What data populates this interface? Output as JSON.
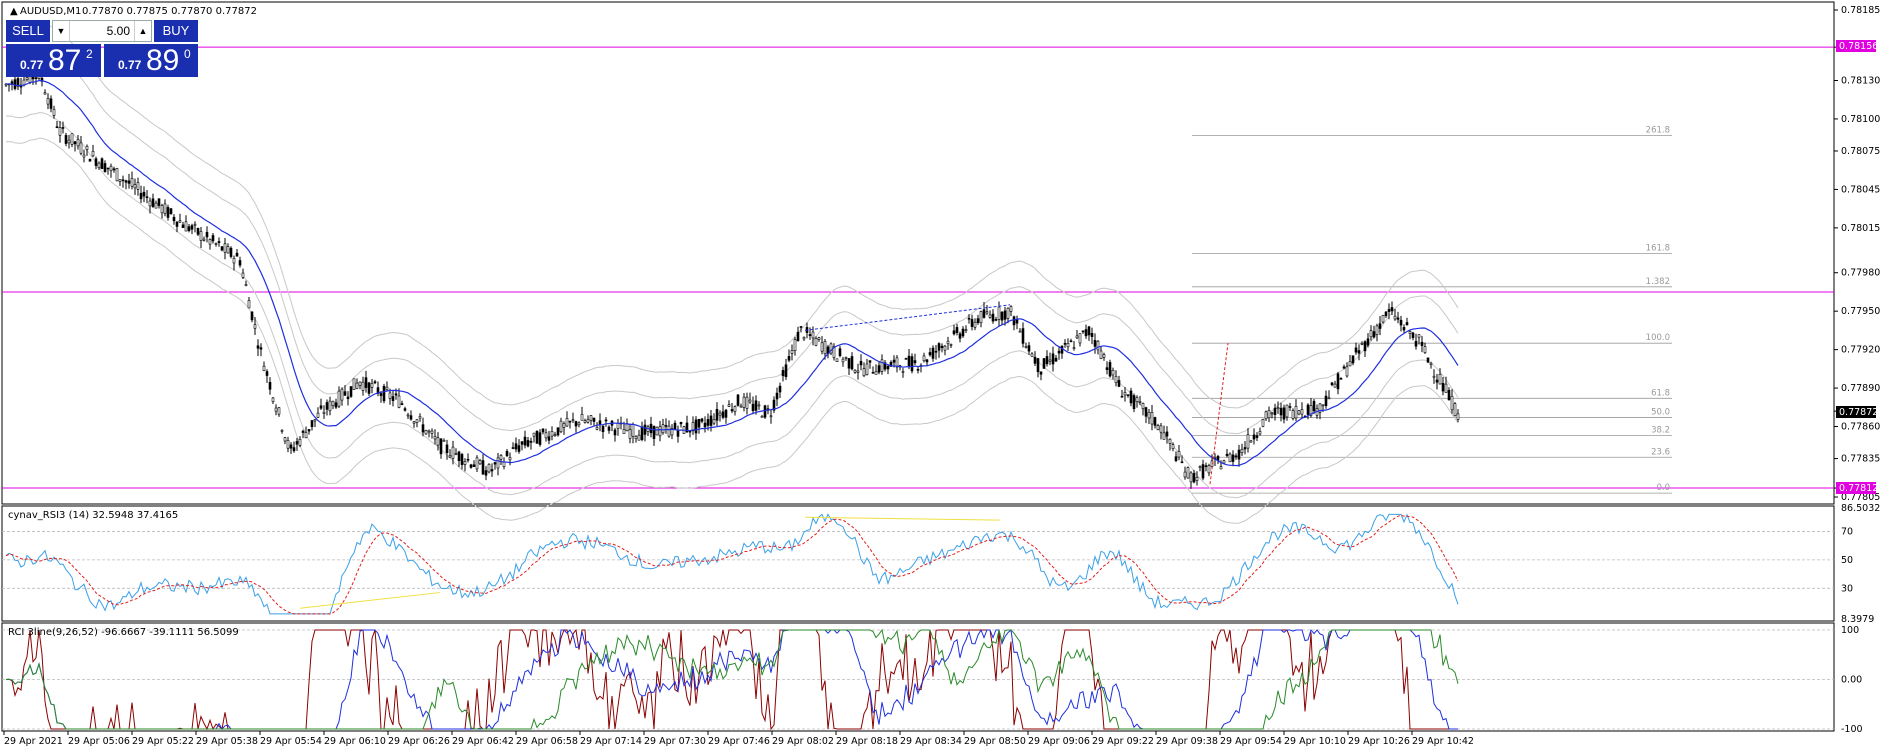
{
  "window": {
    "symbol_header": "AUDUSD,M1",
    "ohlc_header": "0.77870 0.77875 0.77870 0.77872"
  },
  "trade_panel": {
    "sell_label": "SELL",
    "buy_label": "BUY",
    "lot_value": "5.00",
    "sell_price_prefix": "0.77",
    "sell_price_big": "87",
    "sell_price_sup": "2",
    "buy_price_prefix": "0.77",
    "buy_price_big": "89",
    "buy_price_sup": "0"
  },
  "colors": {
    "candle": "#000000",
    "ma_blue": "#1f2fe0",
    "band_gray": "#c8c8c8",
    "hline_magenta": "#e000e0",
    "fib_gray": "#9a9a9a",
    "rsi_blue": "#3aa0e8",
    "rsi_red_signal": "#e02020",
    "rsi_yellow": "#f0e040",
    "rci_red": "#8b0000",
    "rci_blue": "#1f2fe0",
    "rci_green": "#2a8a2a",
    "price_box": "#000000",
    "level_box": "#e000e0"
  },
  "main_chart": {
    "price_axis": [
      "0.78185",
      "0.78156",
      "0.78130",
      "0.78100",
      "0.78075",
      "0.78045",
      "0.78015",
      "0.77980",
      "0.77950",
      "0.77920",
      "0.77890",
      "0.77872",
      "0.77860",
      "0.77835",
      "0.77812",
      "0.77805"
    ],
    "current_price_label": "0.77872",
    "upper_level_label": "0.78156",
    "lower_level_label": "0.77812",
    "fib_levels": [
      {
        "label": "261.8",
        "price": 0.78087
      },
      {
        "label": "161.8",
        "price": 0.77995
      },
      {
        "label": "1.382",
        "price": 0.77969
      },
      {
        "label": "100.0",
        "price": 0.77925
      },
      {
        "label": "61.8",
        "price": 0.77882
      },
      {
        "label": "50.0",
        "price": 0.77867
      },
      {
        "label": "38.2",
        "price": 0.77853
      },
      {
        "label": "23.6",
        "price": 0.77836
      },
      {
        "label": "0.0",
        "price": 0.77808
      }
    ],
    "horizontal_levels": [
      0.78156,
      0.77965,
      0.77812
    ]
  },
  "rsi_panel": {
    "title": "cynav_RSI3 (14) 32.5948 37.4165",
    "axis_labels": [
      "86.5032",
      "70",
      "50",
      "30",
      "8.3979"
    ]
  },
  "rci_panel": {
    "title": "RCI 3line(9,26,52) -96.6667 -39.1111 56.5099",
    "axis_labels": [
      "100",
      "0.00",
      "-100"
    ]
  },
  "time_axis": [
    "29 Apr 2021",
    "29 Apr 05:06",
    "29 Apr 05:22",
    "29 Apr 05:38",
    "29 Apr 05:54",
    "29 Apr 06:10",
    "29 Apr 06:26",
    "29 Apr 06:42",
    "29 Apr 06:58",
    "29 Apr 07:14",
    "29 Apr 07:30",
    "29 Apr 07:46",
    "29 Apr 08:02",
    "29 Apr 08:18",
    "29 Apr 08:34",
    "29 Apr 08:50",
    "29 Apr 09:06",
    "29 Apr 09:22",
    "29 Apr 09:38",
    "29 Apr 09:54",
    "29 Apr 10:10",
    "29 Apr 10:26",
    "29 Apr 10:42"
  ]
}
